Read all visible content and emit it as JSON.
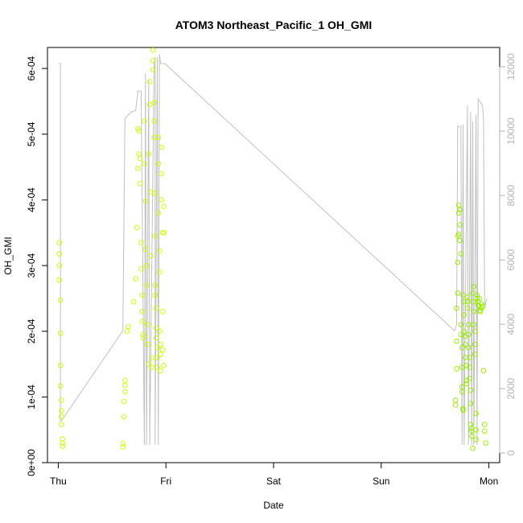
{
  "chart_data": {
    "type": "scatter",
    "title": "ATOM3 Northeast_Pacific_1 OH_GMI",
    "xlabel": "Date",
    "ylabel": "OH_GMI",
    "x_ticks": [
      "Thu",
      "Fri",
      "Sat",
      "Sun",
      "Mon"
    ],
    "x_range_days": [
      -0.1,
      4.1
    ],
    "ylim": [
      0,
      0.000632
    ],
    "y_ticks": [
      "0e+00",
      "1e-04",
      "2e-04",
      "3e-04",
      "4e-04",
      "5e-04",
      "6e-04"
    ],
    "y_tick_values": [
      0,
      0.0001,
      0.0002,
      0.0003,
      0.0004,
      0.0005,
      0.0006
    ],
    "y2lim": [
      -300,
      12600
    ],
    "y2_ticks": [
      "0",
      "2000",
      "4000",
      "6000",
      "8000",
      "10000",
      "12000"
    ],
    "y2_tick_values": [
      0,
      2000,
      4000,
      6000,
      8000,
      10000,
      12000
    ],
    "grid": false,
    "colors": {
      "points_fri": "#ccff00",
      "points_mon": "#99ee00",
      "line": "#c0c0c0",
      "right_axis": "#b3b3b3"
    },
    "series": [
      {
        "kind": "points",
        "values": [
          [
            0.01,
            0.000335
          ],
          [
            0.01,
            0.000318
          ],
          [
            0.01,
            0.0003
          ],
          [
            0.01,
            0.000278
          ],
          [
            0.02,
            0.000247
          ],
          [
            0.02,
            0.000197
          ],
          [
            0.02,
            0.000148
          ],
          [
            0.02,
            0.000117
          ],
          [
            0.03,
            9.5e-05
          ],
          [
            0.03,
            7.9e-05
          ],
          [
            0.03,
            7e-05
          ],
          [
            0.03,
            5.8e-05
          ],
          [
            0.04,
            3.6e-05
          ],
          [
            0.04,
            3e-05
          ],
          [
            0.04,
            2.5e-05
          ],
          [
            0.6,
            2.9e-05
          ],
          [
            0.6,
            2.4e-05
          ],
          [
            0.61,
            7e-05
          ],
          [
            0.61,
            9.3e-05
          ],
          [
            0.62,
            0.000108
          ],
          [
            0.62,
            0.000118
          ],
          [
            0.62,
            0.000125
          ],
          [
            0.64,
            0.0002
          ],
          [
            0.65,
            0.000207
          ],
          [
            0.7,
            0.000245
          ],
          [
            0.72,
            0.00028
          ],
          [
            0.73,
            0.000358
          ],
          [
            0.74,
            0.000448
          ],
          [
            0.74,
            0.000508
          ],
          [
            0.75,
            0.000505
          ],
          [
            0.75,
            0.00047
          ],
          [
            0.76,
            0.000463
          ],
          [
            0.76,
            0.000425
          ],
          [
            0.77,
            0.000335
          ],
          [
            0.77,
            0.000295
          ],
          [
            0.78,
            0.000255
          ],
          [
            0.78,
            0.00023
          ],
          [
            0.78,
            0.000215
          ],
          [
            0.79,
            0.000195
          ],
          [
            0.79,
            0.00019
          ],
          [
            0.8,
            0.00052
          ],
          [
            0.8,
            0.000455
          ],
          [
            0.81,
            0.000398
          ],
          [
            0.81,
            0.000325
          ],
          [
            0.82,
            0.0003
          ],
          [
            0.82,
            0.00027
          ],
          [
            0.83,
            0.00021
          ],
          [
            0.83,
            0.00018
          ],
          [
            0.84,
            0.00015
          ],
          [
            0.84,
            0.00047
          ],
          [
            0.85,
            0.00058
          ],
          [
            0.85,
            0.000545
          ],
          [
            0.86,
            0.000412
          ],
          [
            0.86,
            0.000315
          ],
          [
            0.87,
            0.00016
          ],
          [
            0.87,
            0.000145
          ],
          [
            0.88,
            0.000628
          ],
          [
            0.88,
            0.000612
          ],
          [
            0.88,
            0.000598
          ],
          [
            0.89,
            0.000548
          ],
          [
            0.89,
            0.00052
          ],
          [
            0.89,
            0.000495
          ],
          [
            0.9,
            0.00041
          ],
          [
            0.9,
            0.000345
          ],
          [
            0.9,
            0.00027
          ],
          [
            0.9,
            0.000255
          ],
          [
            0.91,
            0.000235
          ],
          [
            0.91,
            0.000205
          ],
          [
            0.91,
            0.00019
          ],
          [
            0.92,
            0.000175
          ],
          [
            0.92,
            0.00016
          ],
          [
            0.92,
            0.000145
          ],
          [
            0.93,
            0.000495
          ],
          [
            0.93,
            0.000455
          ],
          [
            0.93,
            0.00038
          ],
          [
            0.94,
            0.000322
          ],
          [
            0.94,
            0.00029
          ],
          [
            0.94,
            0.0002
          ],
          [
            0.95,
            0.00018
          ],
          [
            0.95,
            0.000165
          ],
          [
            0.95,
            0.00014
          ],
          [
            0.96,
            0.00048
          ],
          [
            0.96,
            0.00044
          ],
          [
            0.96,
            0.0004
          ],
          [
            0.97,
            0.00035
          ],
          [
            0.97,
            0.00023
          ],
          [
            0.97,
            0.000172
          ],
          [
            0.98,
            0.000148
          ],
          [
            0.98,
            0.00039
          ],
          [
            0.98,
            0.00035
          ]
        ],
        "color": "#ccff00"
      },
      {
        "kind": "points",
        "values": [
          [
            3.69,
            9.5e-05
          ],
          [
            3.69,
            8.8e-05
          ],
          [
            3.7,
            0.000143
          ],
          [
            3.7,
            0.000185
          ],
          [
            3.7,
            0.000235
          ],
          [
            3.71,
            0.000258
          ],
          [
            3.71,
            0.000305
          ],
          [
            3.71,
            0.000345
          ],
          [
            3.72,
            0.000348
          ],
          [
            3.72,
            0.00038
          ],
          [
            3.72,
            0.000392
          ],
          [
            3.73,
            0.000385
          ],
          [
            3.73,
            0.000362
          ],
          [
            3.73,
            0.000338
          ],
          [
            3.74,
            0.000318
          ],
          [
            3.74,
            0.00021
          ],
          [
            3.74,
            0.000195
          ],
          [
            3.75,
            0.000175
          ],
          [
            3.75,
            0.000145
          ],
          [
            3.75,
            0.000115
          ],
          [
            3.75,
            0.000108
          ],
          [
            3.76,
            8.2e-05
          ],
          [
            3.76,
            8e-05
          ],
          [
            3.76,
            0.000255
          ],
          [
            3.77,
            0.000245
          ],
          [
            3.77,
            0.000225
          ],
          [
            3.77,
            0.0002
          ],
          [
            3.78,
            0.000192
          ],
          [
            3.78,
            0.00018
          ],
          [
            3.78,
            0.00016
          ],
          [
            3.79,
            0.000148
          ],
          [
            3.79,
            0.000125
          ],
          [
            3.79,
            0.00012
          ],
          [
            3.8,
            0.000252
          ],
          [
            3.8,
            0.000245
          ],
          [
            3.8,
            0.000235
          ],
          [
            3.81,
            0.00021
          ],
          [
            3.81,
            0.000195
          ],
          [
            3.81,
            0.000175
          ],
          [
            3.82,
            0.00016
          ],
          [
            3.82,
            0.000145
          ],
          [
            3.82,
            0.000128
          ],
          [
            3.83,
            0.00011
          ],
          [
            3.83,
            9e-05
          ],
          [
            3.83,
            5.8e-05
          ],
          [
            3.84,
            5.2e-05
          ],
          [
            3.84,
            4.8e-05
          ],
          [
            3.84,
            4e-05
          ],
          [
            3.85,
            2.2e-05
          ],
          [
            3.85,
            0.000258
          ],
          [
            3.85,
            0.000245
          ],
          [
            3.86,
            0.00023
          ],
          [
            3.86,
            0.000268
          ],
          [
            3.86,
            0.00021
          ],
          [
            3.87,
            0.0002
          ],
          [
            3.87,
            0.00018
          ],
          [
            3.87,
            0.000165
          ],
          [
            3.88,
            7.5e-05
          ],
          [
            3.88,
            5e-05
          ],
          [
            3.88,
            3.5e-05
          ],
          [
            3.89,
            0.000255
          ],
          [
            3.89,
            0.00025
          ],
          [
            3.9,
            0.000245
          ],
          [
            3.9,
            0.00024
          ],
          [
            3.91,
            0.000238
          ],
          [
            3.91,
            0.00025
          ],
          [
            3.92,
            0.00023
          ],
          [
            3.92,
            0.000232
          ],
          [
            3.93,
            0.000235
          ],
          [
            3.93,
            0.000242
          ],
          [
            3.94,
            0.000238
          ],
          [
            3.95,
            0.00014
          ],
          [
            3.96,
            5.8e-05
          ],
          [
            3.96,
            4.8e-05
          ],
          [
            3.97,
            3e-05
          ]
        ],
        "color": "#99ee00"
      },
      {
        "kind": "line",
        "axis": "right",
        "values": [
          [
            0.0,
            12100
          ],
          [
            0.0,
            12100
          ],
          [
            0.02,
            12100
          ],
          [
            0.02,
            1000
          ],
          [
            0.03,
            1000
          ],
          [
            0.6,
            3800
          ],
          [
            0.62,
            10400
          ],
          [
            0.68,
            10600
          ],
          [
            0.72,
            10650
          ],
          [
            0.74,
            11250
          ],
          [
            0.77,
            11250
          ],
          [
            0.8,
            250
          ],
          [
            0.81,
            11800
          ],
          [
            0.82,
            250
          ],
          [
            0.84,
            11600
          ],
          [
            0.85,
            250
          ],
          [
            0.89,
            12100
          ],
          [
            0.9,
            12300
          ],
          [
            0.9,
            250
          ],
          [
            0.92,
            12300
          ],
          [
            0.93,
            250
          ],
          [
            0.94,
            12400
          ],
          [
            0.95,
            12100
          ],
          [
            0.99,
            12100
          ],
          [
            3.68,
            3800
          ],
          [
            3.7,
            4000
          ],
          [
            3.71,
            10150
          ],
          [
            3.74,
            10150
          ],
          [
            3.75,
            250
          ],
          [
            3.76,
            10200
          ],
          [
            3.77,
            250
          ],
          [
            3.8,
            10800
          ],
          [
            3.81,
            250
          ],
          [
            3.83,
            10600
          ],
          [
            3.84,
            250
          ],
          [
            3.85,
            10300
          ],
          [
            3.86,
            250
          ],
          [
            3.88,
            10500
          ],
          [
            3.89,
            250
          ],
          [
            3.9,
            11000
          ],
          [
            3.92,
            10900
          ],
          [
            3.94,
            10800
          ],
          [
            3.95,
            10400
          ],
          [
            3.96,
            4500
          ],
          [
            3.98,
            4800
          ]
        ],
        "color": "#c0c0c0"
      }
    ]
  }
}
